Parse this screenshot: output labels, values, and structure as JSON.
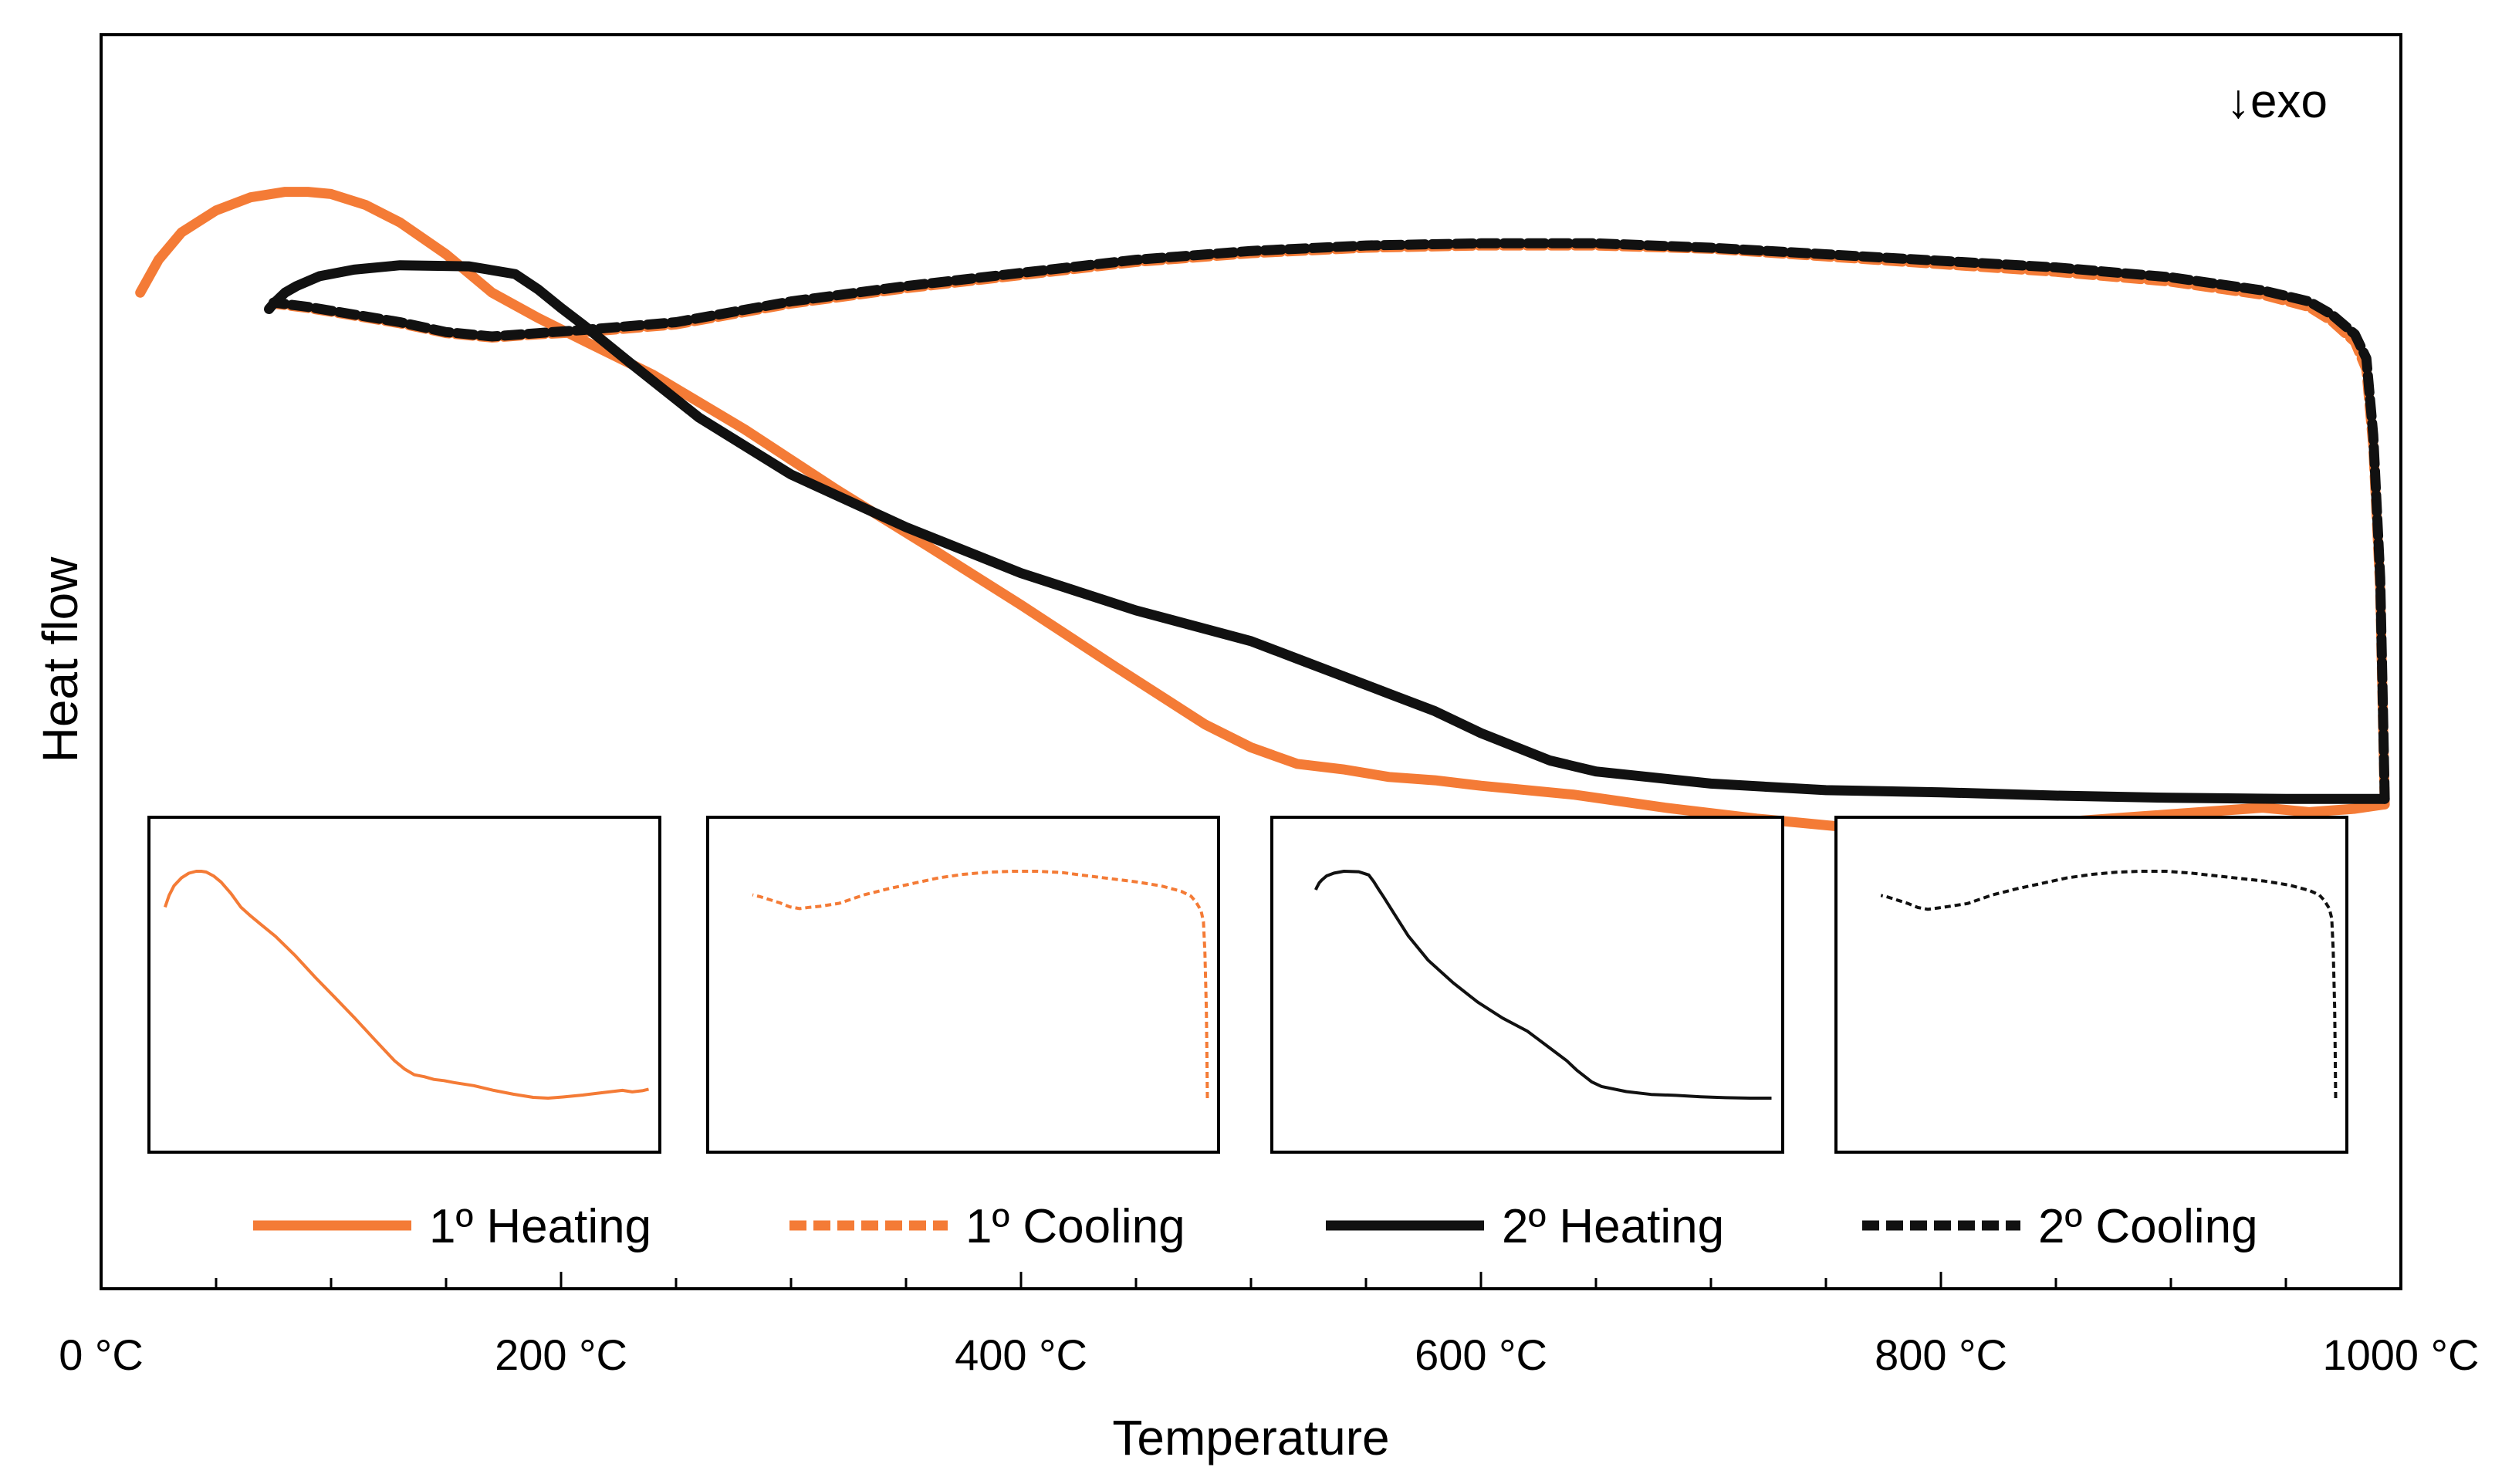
{
  "chart_data": {
    "type": "line",
    "title": "",
    "xlabel": "Temperature",
    "ylabel": "Heat flow",
    "xlim": [
      0,
      1000
    ],
    "ylim": [
      0,
      100
    ],
    "y_ticks_shown": false,
    "x_ticks": [
      0,
      200,
      400,
      600,
      800,
      1000
    ],
    "x_tick_labels": [
      "0 °C",
      "200 °C",
      "400 °C",
      "600 °C",
      "800 °C",
      "1000 °C"
    ],
    "annotation": "↓exo",
    "colors": {
      "orange": "#f47b36",
      "black": "#111111"
    },
    "series": [
      {
        "name": "1º Heating",
        "color": "#f47b36",
        "dash": "solid",
        "x": [
          17,
          25,
          35,
          50,
          65,
          80,
          90,
          100,
          115,
          130,
          150,
          170,
          190,
          210,
          240,
          280,
          320,
          360,
          400,
          440,
          480,
          500,
          520,
          540,
          560,
          580,
          600,
          640,
          680,
          720,
          760,
          790,
          800,
          820,
          860,
          900,
          940,
          960,
          980,
          993
        ],
        "y": [
          89,
          92,
          94.5,
          96.5,
          97.7,
          98.2,
          98.2,
          98,
          97,
          95.4,
          92.5,
          89,
          86.7,
          84.6,
          81.5,
          76.5,
          71,
          65.8,
          60.5,
          55,
          49.6,
          47.5,
          46,
          45.5,
          44.8,
          44.5,
          44,
          43.2,
          42,
          41,
          40.2,
          40,
          40.1,
          40.3,
          40.8,
          41.4,
          42,
          41.6,
          41.9,
          42.3
        ]
      },
      {
        "name": "1º Cooling",
        "color": "#f47b36",
        "dash": "dashed",
        "x": [
          993,
          992,
          991,
          988,
          985,
          980,
          970,
          960,
          940,
          900,
          850,
          800,
          750,
          700,
          650,
          600,
          550,
          500,
          450,
          400,
          350,
          300,
          250,
          210,
          190,
          170,
          150,
          130,
          110,
          90,
          75
        ],
        "y": [
          42.3,
          52,
          62,
          75,
          82,
          84.5,
          86.4,
          87.7,
          88.8,
          90,
          90.9,
          91.6,
          92.3,
          93,
          93.3,
          93.3,
          93.1,
          92.6,
          91.8,
          90.6,
          89.4,
          88,
          86.1,
          85.4,
          85.2,
          84.9,
          85.3,
          86.2,
          86.9,
          87.6,
          88
        ]
      },
      {
        "name": "2º Heating",
        "color": "#111111",
        "dash": "solid",
        "x": [
          73,
          75,
          80,
          85,
          95,
          110,
          130,
          160,
          180,
          190,
          200,
          210,
          230,
          260,
          300,
          350,
          400,
          450,
          500,
          520,
          540,
          560,
          580,
          600,
          630,
          650,
          700,
          750,
          800,
          850,
          900,
          950,
          993
        ],
        "y": [
          87.5,
          88,
          89,
          89.6,
          90.5,
          91.1,
          91.5,
          91.4,
          90.7,
          89.3,
          87.6,
          86,
          82.6,
          77.6,
          72.4,
          67.6,
          63.4,
          60,
          57.2,
          55.6,
          54,
          52.4,
          50.8,
          48.8,
          46.3,
          45.3,
          44.2,
          43.6,
          43.4,
          43.1,
          42.9,
          42.8,
          42.8
        ]
      },
      {
        "name": "2º Cooling",
        "color": "#111111",
        "dash": "dashed",
        "x": [
          993,
          992,
          991,
          988,
          985,
          980,
          970,
          960,
          940,
          900,
          850,
          800,
          750,
          700,
          650,
          600,
          550,
          500,
          450,
          400,
          350,
          300,
          250,
          210,
          190,
          170,
          150,
          130,
          110,
          90,
          75
        ],
        "y": [
          42.8,
          53,
          63,
          76,
          83,
          85.2,
          87,
          88.2,
          89.2,
          90.4,
          91.3,
          91.9,
          92.5,
          93.1,
          93.5,
          93.5,
          93.3,
          92.8,
          92,
          90.8,
          89.6,
          88.2,
          86.3,
          85.6,
          85.3,
          85,
          85.4,
          86.3,
          87,
          87.7,
          88.1
        ]
      }
    ],
    "insets": [
      {
        "name": "1º Heating",
        "series_index": 0
      },
      {
        "name": "1º Cooling",
        "series_index": 1
      },
      {
        "name": "2º Heating",
        "series_index": 2
      },
      {
        "name": "2º Cooling",
        "series_index": 3
      }
    ],
    "legend": [
      "1º Heating",
      "1º Cooling",
      "2º Heating",
      "2º Cooling"
    ],
    "legend_position": "bottom"
  }
}
